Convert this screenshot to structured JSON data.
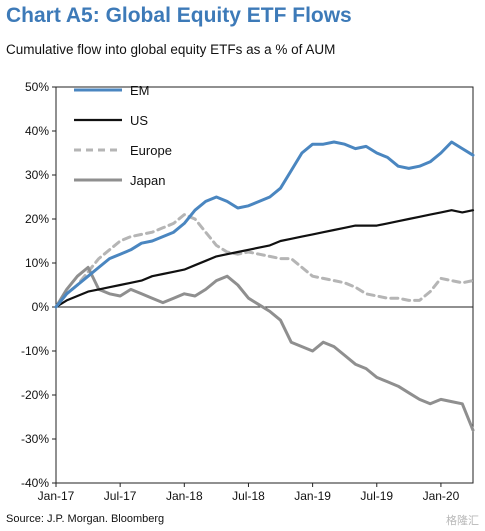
{
  "header": {
    "title": "Chart A5: Global Equity ETF Flows",
    "subtitle": "Cumulative flow into global equity ETFs as a % of AUM"
  },
  "footer": {
    "source": "Source: J.P. Morgan. Bloomberg",
    "watermark": "格隆汇"
  },
  "chart_data": {
    "type": "line",
    "ylim": [
      -40,
      50
    ],
    "y_ticks": [
      -40,
      -30,
      -20,
      -10,
      0,
      10,
      20,
      30,
      40,
      50
    ],
    "y_tick_labels": [
      "-40%",
      "-30%",
      "-20%",
      "-10%",
      "0%",
      "10%",
      "20%",
      "30%",
      "40%",
      "50%"
    ],
    "x_tick_labels": [
      "Jan-17",
      "Jul-17",
      "Jan-18",
      "Jul-18",
      "Jan-19",
      "Jul-19",
      "Jan-20"
    ],
    "x_tick_positions": [
      0,
      6,
      12,
      18,
      24,
      30,
      36
    ],
    "xlim": [
      0,
      39
    ],
    "legend_position": "top-left",
    "series": [
      {
        "name": "EM",
        "color": "#4a86c0",
        "dash": "solid",
        "x": [
          0,
          1,
          2,
          3,
          4,
          5,
          6,
          7,
          8,
          9,
          10,
          11,
          12,
          13,
          14,
          15,
          16,
          17,
          18,
          19,
          20,
          21,
          22,
          23,
          24,
          25,
          26,
          27,
          28,
          29,
          30,
          31,
          32,
          33,
          34,
          35,
          36,
          37,
          38,
          39
        ],
        "values": [
          0,
          3,
          5,
          7,
          9,
          11,
          12,
          13,
          14.5,
          15,
          16,
          17,
          19,
          22,
          24,
          25,
          24,
          22.5,
          23,
          24,
          25,
          27,
          31,
          35,
          37,
          37,
          37.5,
          37,
          36,
          36.5,
          35,
          34,
          32,
          31.5,
          32,
          33,
          35,
          37.5,
          36,
          34.5
        ]
      },
      {
        "name": "US",
        "color": "#111111",
        "dash": "solid",
        "x": [
          0,
          1,
          2,
          3,
          4,
          5,
          6,
          7,
          8,
          9,
          10,
          11,
          12,
          13,
          14,
          15,
          16,
          17,
          18,
          19,
          20,
          21,
          22,
          23,
          24,
          25,
          26,
          27,
          28,
          29,
          30,
          31,
          32,
          33,
          34,
          35,
          36,
          37,
          38,
          39
        ],
        "values": [
          0,
          1.5,
          2.5,
          3.5,
          4,
          4.5,
          5,
          5.5,
          6,
          7,
          7.5,
          8,
          8.5,
          9.5,
          10.5,
          11.5,
          12,
          12.5,
          13,
          13.5,
          14,
          15,
          15.5,
          16,
          16.5,
          17,
          17.5,
          18,
          18.5,
          18.5,
          18.5,
          19,
          19.5,
          20,
          20.5,
          21,
          21.5,
          22,
          21.5,
          22
        ]
      },
      {
        "name": "Europe",
        "color": "#b5b5b5",
        "dash": "dashed",
        "x": [
          0,
          1,
          2,
          3,
          4,
          5,
          6,
          7,
          8,
          9,
          10,
          11,
          12,
          13,
          14,
          15,
          16,
          17,
          18,
          19,
          20,
          21,
          22,
          23,
          24,
          25,
          26,
          27,
          28,
          29,
          30,
          31,
          32,
          33,
          34,
          35,
          36,
          37,
          38,
          39
        ],
        "values": [
          0,
          3,
          5,
          8,
          11,
          13,
          15,
          16,
          16.5,
          17,
          18,
          19,
          21,
          20,
          17,
          14,
          12.5,
          12,
          12.5,
          12,
          11.5,
          11,
          11,
          9,
          7,
          6.5,
          6,
          5.5,
          4.5,
          3,
          2.5,
          2,
          2,
          1.5,
          1.5,
          3.5,
          6.5,
          6,
          5.5,
          6
        ]
      },
      {
        "name": "Japan",
        "color": "#8f8f8f",
        "dash": "solid",
        "x": [
          0,
          1,
          2,
          3,
          4,
          5,
          6,
          7,
          8,
          9,
          10,
          11,
          12,
          13,
          14,
          15,
          16,
          17,
          18,
          19,
          20,
          21,
          22,
          23,
          24,
          25,
          26,
          27,
          28,
          29,
          30,
          31,
          32,
          33,
          34,
          35,
          36,
          37,
          38,
          39
        ],
        "values": [
          0,
          4,
          7,
          9,
          4,
          3,
          2.5,
          4,
          3,
          2,
          1,
          2,
          3,
          2.5,
          4,
          6,
          7,
          5,
          2,
          0.5,
          -1,
          -3,
          -8,
          -9,
          -10,
          -8,
          -9,
          -11,
          -13,
          -14,
          -16,
          -17,
          -18,
          -19.5,
          -21,
          -22,
          -21,
          -21.5,
          -22,
          -28
        ]
      }
    ]
  }
}
